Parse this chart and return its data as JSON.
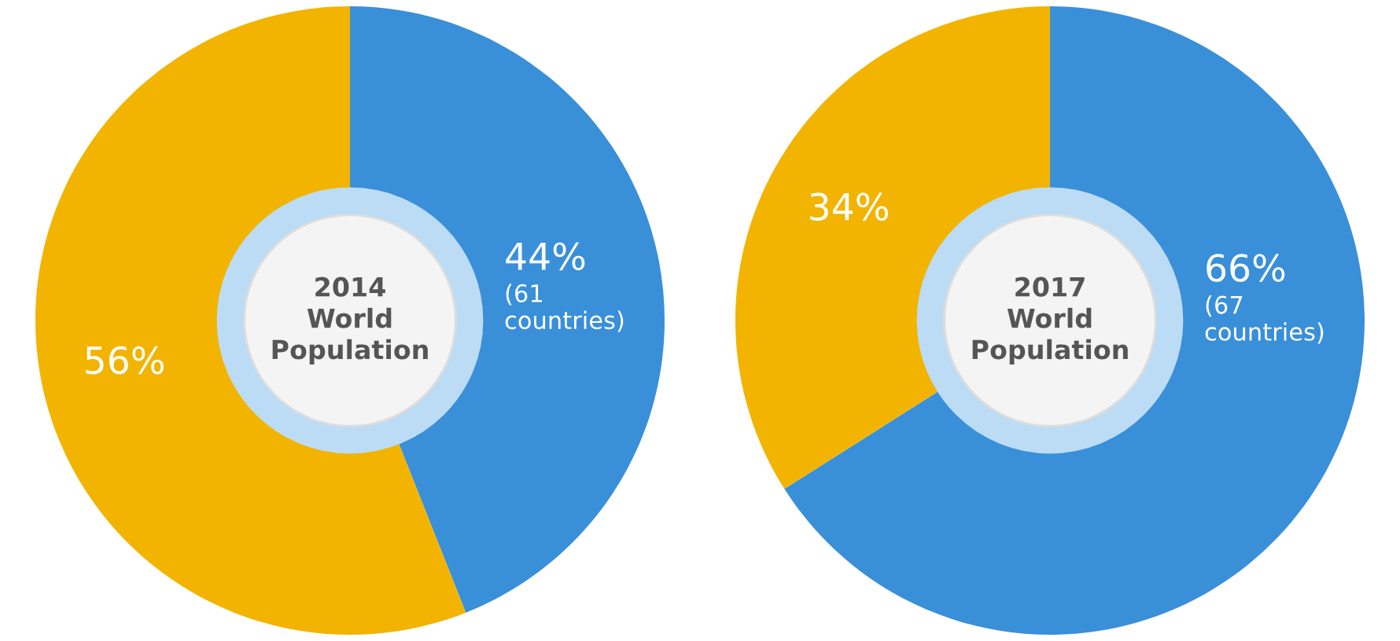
{
  "chart_data": [
    {
      "type": "donut",
      "title": "2014\nWorld\nPopulation",
      "categories": [
        null,
        null
      ],
      "values": [
        44,
        56
      ],
      "colors": [
        "#3a8fd9",
        "#f2b400"
      ],
      "value_labels": [
        "44%\n(61\ncountries)",
        "56%"
      ]
    },
    {
      "type": "donut",
      "title": "2017\nWorld\nPopulation",
      "categories": [
        null,
        null
      ],
      "values": [
        66,
        34
      ],
      "colors": [
        "#3a8fd9",
        "#f2b400"
      ],
      "value_labels": [
        "66%\n(67\ncountries)",
        "34%"
      ]
    }
  ]
}
